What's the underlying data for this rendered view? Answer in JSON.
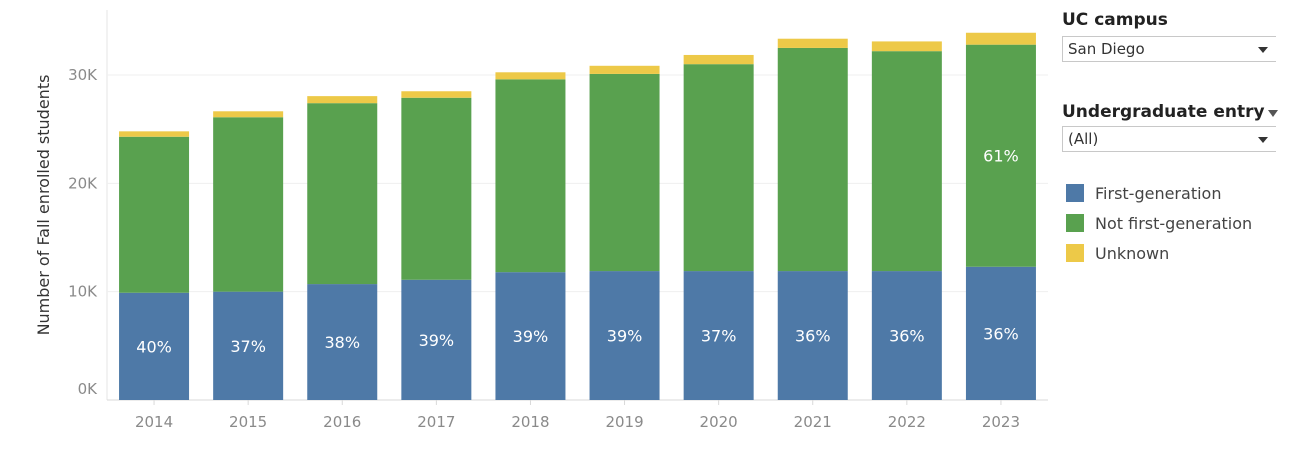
{
  "chart_data": {
    "type": "bar",
    "stacked": true,
    "categories": [
      "2014",
      "2015",
      "2016",
      "2017",
      "2018",
      "2019",
      "2020",
      "2021",
      "2022",
      "2023"
    ],
    "series": [
      {
        "name": "First-generation",
        "color": "#4e79a7",
        "values": [
          9900,
          10000,
          10700,
          11100,
          11800,
          11900,
          11900,
          11900,
          11900,
          12300
        ],
        "labels": [
          "40%",
          "37%",
          "38%",
          "39%",
          "39%",
          "39%",
          "37%",
          "36%",
          "36%",
          "36%"
        ]
      },
      {
        "name": "Not first-generation",
        "color": "#59a14f",
        "values": [
          14400,
          16100,
          16700,
          16800,
          17800,
          18200,
          19100,
          20600,
          20300,
          20500
        ],
        "labels": [
          "",
          "",
          "",
          "",
          "",
          "",
          "",
          "",
          "",
          "61%"
        ]
      },
      {
        "name": "Unknown",
        "color": "#edc948",
        "values": [
          500,
          550,
          650,
          600,
          650,
          750,
          850,
          850,
          900,
          1100
        ],
        "labels": [
          "",
          "",
          "",
          "",
          "",
          "",
          "",
          "",
          "",
          ""
        ]
      }
    ],
    "ylabel": "Number of Fall enrolled students",
    "yticks": [
      "0K",
      "10K",
      "20K",
      "30K"
    ],
    "ytick_values": [
      0,
      10000,
      20000,
      30000
    ],
    "ylim": [
      0,
      36000
    ],
    "grid": true,
    "legend": "right"
  },
  "filters": {
    "campus": {
      "title": "UC campus",
      "value": "San Diego"
    },
    "entry": {
      "title": "Undergraduate entry",
      "value": "(All)"
    }
  }
}
